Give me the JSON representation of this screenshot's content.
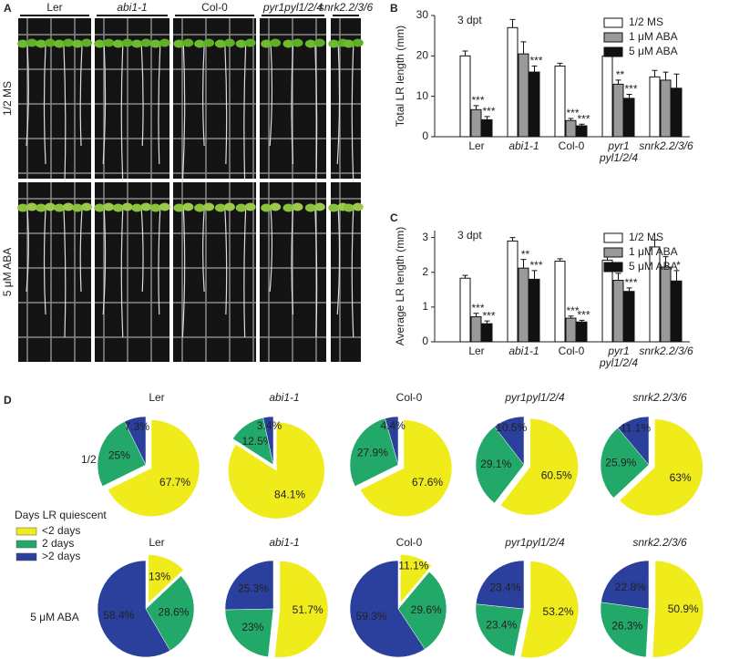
{
  "panel_labels": [
    "A",
    "B",
    "C",
    "D"
  ],
  "photos": {
    "genotypes": [
      "Ler",
      "abi1-1",
      "Col-0",
      "pyr1pyl1/2/4",
      "snrk2.2/3/6"
    ],
    "treatments": [
      "1/2 MS",
      "5 μM ABA"
    ]
  },
  "chart_data": [
    {
      "type": "bar",
      "annotation": "3 dpt",
      "y_label": "Total LR length (mm)",
      "categories": [
        "Ler",
        "abi1-1",
        "Col-0",
        "pyr1\npyl1/2/4",
        "snrk2.2/3/6"
      ],
      "ylim": [
        0,
        30
      ],
      "yticks": [
        0,
        10,
        20,
        30
      ],
      "series": [
        {
          "name": "1/2 MS",
          "color": "#ffffff",
          "values": [
            20,
            27,
            17.5,
            20,
            14.8
          ],
          "errors": [
            1.2,
            2,
            0.7,
            1.8,
            1.6
          ]
        },
        {
          "name": "1 μM ABA",
          "color": "#9a9a9a",
          "values": [
            6.7,
            20.5,
            4,
            13,
            14
          ],
          "errors": [
            1,
            3,
            0.5,
            1,
            2
          ],
          "significance": [
            "***",
            null,
            "***",
            "**",
            null
          ]
        },
        {
          "name": "5 μM ABA",
          "color": "#111111",
          "values": [
            4.2,
            16,
            2.7,
            9.5,
            12
          ],
          "errors": [
            0.8,
            1.5,
            0.4,
            1,
            3.5
          ],
          "significance": [
            "***",
            "***",
            "***",
            "***",
            null
          ]
        }
      ]
    },
    {
      "type": "bar",
      "annotation": "3 dpt",
      "y_label": "Average LR length (mm)",
      "categories": [
        "Ler",
        "abi1-1",
        "Col-0",
        "pyr1\npyl1/2/4",
        "snrk2.2/3/6"
      ],
      "ylim": [
        0,
        3.2
      ],
      "yticks": [
        0,
        1,
        2,
        3
      ],
      "series": [
        {
          "name": "1/2 MS",
          "color": "#ffffff",
          "values": [
            1.83,
            2.9,
            2.32,
            2.35,
            2.73
          ],
          "errors": [
            0.08,
            0.1,
            0.07,
            0.15,
            0.2
          ]
        },
        {
          "name": "1 μM ABA",
          "color": "#9a9a9a",
          "values": [
            0.72,
            2.12,
            0.68,
            1.77,
            2.15
          ],
          "errors": [
            0.1,
            0.25,
            0.06,
            0.2,
            0.3
          ],
          "significance": [
            "***",
            "**",
            "***",
            "*",
            null
          ]
        },
        {
          "name": "5 μM ABA",
          "color": "#111111",
          "values": [
            0.52,
            1.8,
            0.57,
            1.45,
            1.75
          ],
          "errors": [
            0.08,
            0.25,
            0.05,
            0.1,
            0.3
          ],
          "significance": [
            "***",
            "***",
            "***",
            "***",
            "*"
          ]
        }
      ]
    },
    {
      "type": "pie",
      "legend_title": "Days LR quiescent",
      "categories": [
        "<2 days",
        "2 days",
        ">2 days"
      ],
      "colors": [
        "#f0ec1c",
        "#22a96a",
        "#2b3f9d"
      ],
      "columns": [
        "Ler",
        "abi1-1",
        "Col-0",
        "pyr1pyl1/2/4",
        "snrk2.2/3/6"
      ],
      "rows": [
        "1/2 MS",
        "5 μM ABA"
      ],
      "pies": [
        [
          {
            "values": [
              67.7,
              25,
              7.3
            ],
            "value_labels": [
              "67.7%",
              "25%",
              "7.3%"
            ]
          },
          {
            "values": [
              84.1,
              12.5,
              3.4
            ],
            "value_labels": [
              "84.1%",
              "12.5%",
              "3.4%"
            ]
          },
          {
            "values": [
              67.6,
              27.9,
              4.4
            ],
            "value_labels": [
              "67.6%",
              "27.9%",
              "4.4%"
            ]
          },
          {
            "values": [
              60.5,
              29.1,
              10.5
            ],
            "value_labels": [
              "60.5%",
              "29.1%",
              "10.5%"
            ]
          },
          {
            "values": [
              63,
              25.9,
              11.1
            ],
            "value_labels": [
              "63%",
              "25.9%",
              "11.1%"
            ]
          }
        ],
        [
          {
            "values": [
              13,
              28.6,
              58.4
            ],
            "value_labels": [
              "13%",
              "28.6%",
              "58.4%"
            ]
          },
          {
            "values": [
              51.7,
              23,
              25.3
            ],
            "value_labels": [
              "51.7%",
              "23%",
              "25.3%"
            ]
          },
          {
            "values": [
              11.1,
              29.6,
              59.3
            ],
            "value_labels": [
              "11.1%",
              "29.6%",
              "59.3%"
            ]
          },
          {
            "values": [
              53.2,
              23.4,
              23.4
            ],
            "value_labels": [
              "53.2%",
              "23.4%",
              "23.4%"
            ]
          },
          {
            "values": [
              50.9,
              26.3,
              22.8
            ],
            "value_labels": [
              "50.9%",
              "26.3%",
              "22.8%"
            ]
          }
        ]
      ]
    }
  ]
}
